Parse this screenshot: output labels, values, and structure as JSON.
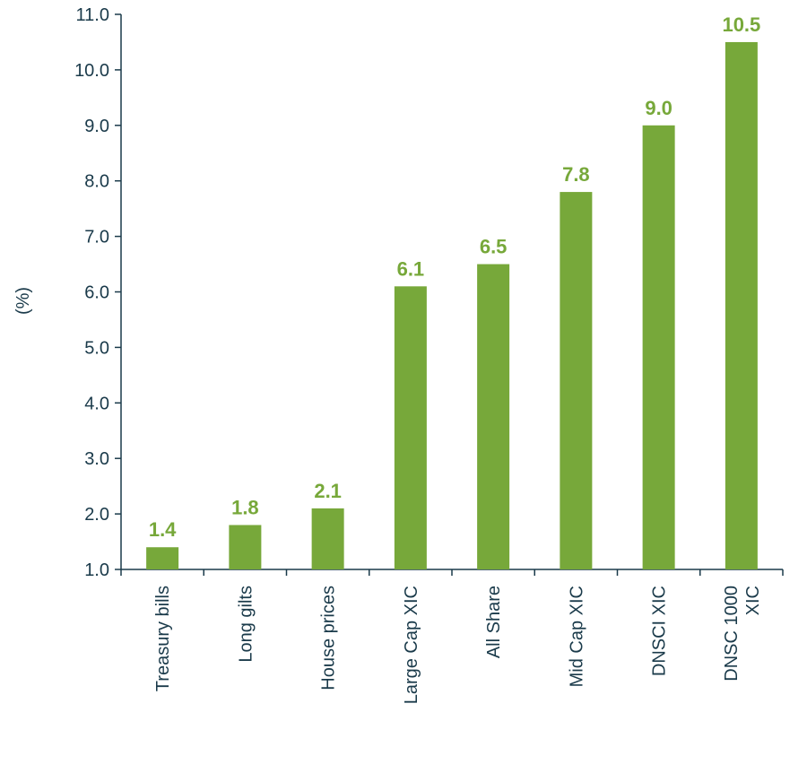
{
  "chart_data": {
    "type": "bar",
    "ylabel": "(%)",
    "ylim": [
      1.0,
      11.0
    ],
    "yticks": [
      "1.0",
      "2.0",
      "3.0",
      "4.0",
      "5.0",
      "6.0",
      "7.0",
      "8.0",
      "9.0",
      "10.0",
      "11.0"
    ],
    "categories": [
      [
        "Treasury bills"
      ],
      [
        "Long gilts"
      ],
      [
        "House prices"
      ],
      [
        "Large Cap XIC"
      ],
      [
        "All Share"
      ],
      [
        "Mid Cap XIC"
      ],
      [
        "DNSCI XIC"
      ],
      [
        "DNSC 1000",
        "XIC"
      ]
    ],
    "values": [
      1.4,
      1.8,
      2.1,
      6.1,
      6.5,
      7.8,
      9.0,
      10.5
    ],
    "value_labels": [
      "1.4",
      "1.8",
      "2.1",
      "6.1",
      "6.5",
      "7.8",
      "9.0",
      "10.5"
    ],
    "colors": {
      "bar": "#77a83a",
      "label": "#77a83a",
      "axis": "#1a3a4a"
    },
    "grid": false,
    "legend": "none"
  }
}
